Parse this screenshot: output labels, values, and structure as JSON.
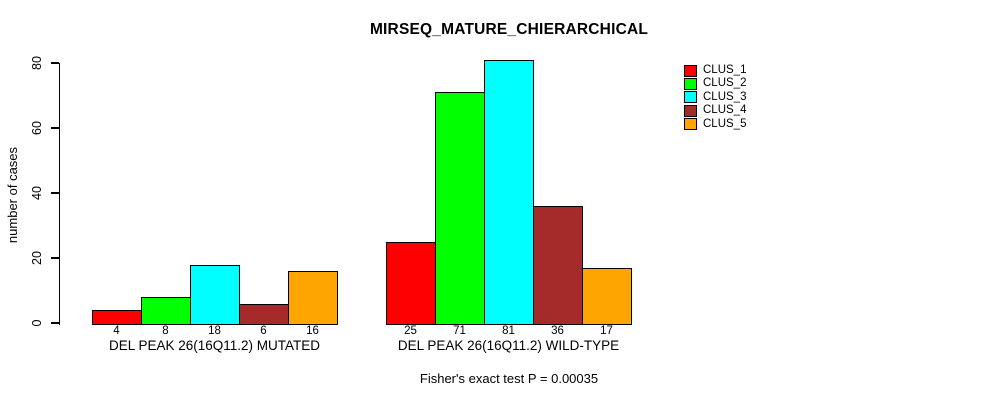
{
  "chart_data": {
    "type": "bar",
    "title": "MIRSEQ_MATURE_CHIERARCHICAL",
    "ylabel": "number of cases",
    "xlabel": "",
    "ylim": [
      0,
      80
    ],
    "yticks": [
      0,
      20,
      40,
      60,
      80
    ],
    "grid": false,
    "legend_position": "top-right",
    "categories": [
      "DEL PEAK 26(16Q11.2) MUTATED",
      "DEL PEAK 26(16Q11.2) WILD-TYPE"
    ],
    "series": [
      {
        "name": "CLUS_1",
        "color": "#FF0000",
        "values": [
          4,
          25
        ]
      },
      {
        "name": "CLUS_2",
        "color": "#00FF00",
        "values": [
          8,
          71
        ]
      },
      {
        "name": "CLUS_3",
        "color": "#00FFFF",
        "values": [
          18,
          81
        ]
      },
      {
        "name": "CLUS_4",
        "color": "#A52A2A",
        "values": [
          6,
          36
        ]
      },
      {
        "name": "CLUS_5",
        "color": "#FFA500",
        "values": [
          16,
          17
        ]
      }
    ],
    "bar_value_labels": [
      [
        4,
        8,
        18,
        6,
        16
      ],
      [
        25,
        71,
        81,
        36,
        17
      ]
    ],
    "annotation": "Fisher's exact test P = 0.00035",
    "axis_color": "#000000",
    "bar_border_color": "#000000",
    "text_color": "#000000"
  }
}
